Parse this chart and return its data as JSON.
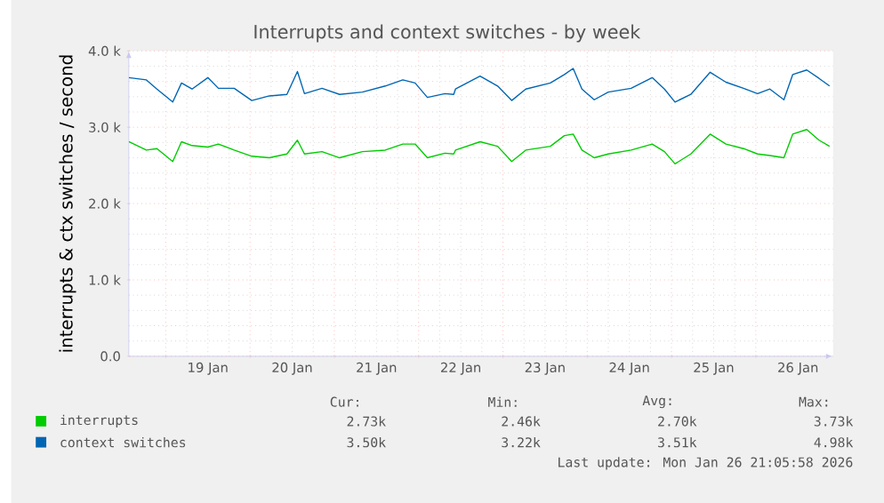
{
  "chart_data": {
    "type": "line",
    "title": "Interrupts and context switches - by week",
    "ylabel": "interrupts & ctx switches / second",
    "xlim": [
      "2026-01-18T13:30",
      "2026-01-26T22:00"
    ],
    "xticks": [
      {
        "value": "2026-01-19T00:00",
        "label": null
      },
      {
        "value": "2026-01-20T00:00",
        "label": null
      },
      {
        "value": "2026-01-21T00:00",
        "label": null
      },
      {
        "value": "2026-01-22T00:00",
        "label": null
      },
      {
        "value": "2026-01-23T00:00",
        "label": null
      },
      {
        "value": "2026-01-24T00:00",
        "label": null
      },
      {
        "value": "2026-01-25T00:00",
        "label": null
      },
      {
        "value": "2026-01-26T00:00",
        "label": null
      },
      {
        "value": "2026-01-19T12:00",
        "label": "19 Jan"
      },
      {
        "value": "2026-01-20T12:00",
        "label": "20 Jan"
      },
      {
        "value": "2026-01-21T12:00",
        "label": "21 Jan"
      },
      {
        "value": "2026-01-22T12:00",
        "label": "22 Jan"
      },
      {
        "value": "2026-01-23T12:00",
        "label": "23 Jan"
      },
      {
        "value": "2026-01-24T12:00",
        "label": "24 Jan"
      },
      {
        "value": "2026-01-25T12:00",
        "label": "25 Jan"
      },
      {
        "value": "2026-01-26T12:00",
        "label": "26 Jan"
      }
    ],
    "ylim": [
      0,
      4000
    ],
    "yticks": [
      {
        "value": 0,
        "label": "0.0"
      },
      {
        "value": 1000,
        "label": "1.0 k"
      },
      {
        "value": 2000,
        "label": "2.0 k"
      },
      {
        "value": 3000,
        "label": "3.0 k"
      },
      {
        "value": 4000,
        "label": "4.0 k"
      }
    ],
    "grid": true,
    "legend": "bottom",
    "marker": "none",
    "line_style": "solid",
    "x": [
      "2026-01-18T13:30",
      "2026-01-18T18:30",
      "2026-01-18T21:30",
      "2026-01-19T02:00",
      "2026-01-19T04:30",
      "2026-01-19T07:30",
      "2026-01-19T12:00",
      "2026-01-19T15:00",
      "2026-01-19T19:30",
      "2026-01-20T00:30",
      "2026-01-20T05:30",
      "2026-01-20T10:30",
      "2026-01-20T13:30",
      "2026-01-20T15:30",
      "2026-01-20T20:30",
      "2026-01-21T01:30",
      "2026-01-21T08:00",
      "2026-01-21T14:30",
      "2026-01-21T19:30",
      "2026-01-21T23:00",
      "2026-01-22T02:30",
      "2026-01-22T07:30",
      "2026-01-22T10:00",
      "2026-01-22T10:30",
      "2026-01-22T17:30",
      "2026-01-22T22:30",
      "2026-01-23T02:30",
      "2026-01-23T06:30",
      "2026-01-23T13:30",
      "2026-01-23T17:30",
      "2026-01-23T20:00",
      "2026-01-23T22:30",
      "2026-01-24T02:00",
      "2026-01-24T06:00",
      "2026-01-24T12:30",
      "2026-01-24T18:30",
      "2026-01-24T22:00",
      "2026-01-25T01:00",
      "2026-01-25T05:30",
      "2026-01-25T11:00",
      "2026-01-25T15:30",
      "2026-01-25T20:30",
      "2026-01-26T00:30",
      "2026-01-26T04:00",
      "2026-01-26T08:00",
      "2026-01-26T10:30",
      "2026-01-26T14:30",
      "2026-01-26T18:00",
      "2026-01-26T21:00"
    ],
    "series": [
      {
        "name": "interrupts",
        "color": "#00cc00",
        "values": [
          2810,
          2700,
          2720,
          2550,
          2810,
          2760,
          2740,
          2780,
          2700,
          2620,
          2600,
          2650,
          2830,
          2650,
          2680,
          2600,
          2680,
          2700,
          2780,
          2780,
          2600,
          2660,
          2650,
          2700,
          2810,
          2750,
          2550,
          2700,
          2750,
          2890,
          2910,
          2700,
          2600,
          2650,
          2700,
          2780,
          2680,
          2520,
          2650,
          2910,
          2780,
          2720,
          2650,
          2630,
          2600,
          2910,
          2970,
          2830,
          2750
        ]
      },
      {
        "name": "context switches",
        "color": "#0066b3",
        "values": [
          3650,
          3620,
          3500,
          3330,
          3580,
          3500,
          3650,
          3510,
          3510,
          3350,
          3410,
          3430,
          3730,
          3440,
          3510,
          3430,
          3460,
          3540,
          3620,
          3580,
          3390,
          3440,
          3430,
          3500,
          3670,
          3540,
          3350,
          3500,
          3580,
          3690,
          3770,
          3500,
          3360,
          3460,
          3510,
          3650,
          3500,
          3330,
          3430,
          3720,
          3590,
          3510,
          3440,
          3500,
          3360,
          3690,
          3750,
          3640,
          3540
        ]
      }
    ],
    "annotations": [
      "Cur:",
      "Min:",
      "Avg:",
      "Max:",
      "2.73k",
      "2.46k",
      "2.70k",
      "3.73k",
      "3.50k",
      "3.22k",
      "3.51k",
      "4.98k",
      "Last update: Mon Jan 26 21:05:58 2026"
    ]
  }
}
